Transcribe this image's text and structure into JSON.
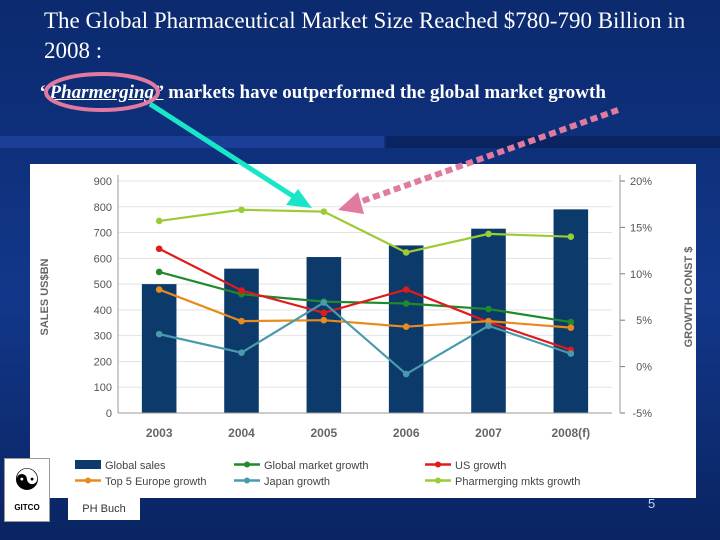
{
  "slide": {
    "title": "The Global Pharmaceutical Market Size Reached $780-790 Billion in 2008 :",
    "subtitle_quote_open": "“",
    "subtitle_emphasis": "Pharmerging”",
    "subtitle_rest": " markets have outperformed the global market growth",
    "author": "PH Buch",
    "page_number": "5",
    "logo_text": "GITCO"
  },
  "chart_data": {
    "type": "bar",
    "categories": [
      "2003",
      "2004",
      "2005",
      "2006",
      "2007",
      "2008(f)"
    ],
    "ylabel_left": "SALES US$BN",
    "ylabel_right": "GROWTH CONST $",
    "ylim_left": [
      0,
      900
    ],
    "left_ticks": [
      "0",
      "100",
      "200",
      "300",
      "400",
      "500",
      "600",
      "700",
      "800",
      "900"
    ],
    "ylim_right": [
      -5,
      20
    ],
    "right_ticks": [
      "-5%",
      "0%",
      "5%",
      "10%",
      "15%",
      "20%"
    ],
    "bar_series": {
      "name": "Global sales",
      "values": [
        500,
        560,
        605,
        650,
        715,
        790
      ],
      "color": "#0c3a6b"
    },
    "line_series": [
      {
        "name": "Global market growth",
        "values": [
          10.2,
          7.8,
          7.0,
          6.8,
          6.2,
          4.8
        ],
        "color": "#1e8a2a"
      },
      {
        "name": "US growth",
        "values": [
          12.7,
          8.2,
          5.8,
          8.3,
          4.8,
          1.8
        ],
        "color": "#e01b1b"
      },
      {
        "name": "Top 5 Europe growth",
        "values": [
          8.3,
          4.9,
          5.0,
          4.3,
          4.9,
          4.2
        ],
        "color": "#e98a1e"
      },
      {
        "name": "Japan growth",
        "values": [
          3.5,
          1.5,
          6.9,
          -0.8,
          4.4,
          1.4
        ],
        "color": "#4a9aad"
      },
      {
        "name": "Pharmerging mkts growth",
        "values": [
          15.7,
          16.9,
          16.7,
          12.3,
          14.3,
          14.0
        ],
        "color": "#9ccc35"
      }
    ],
    "legend_position": "bottom"
  },
  "annotations": {
    "highlight_color": "#e07aa0",
    "cyan_arrow_color": "#19e6c8",
    "dotted_arrow_color": "#e07aa0"
  }
}
